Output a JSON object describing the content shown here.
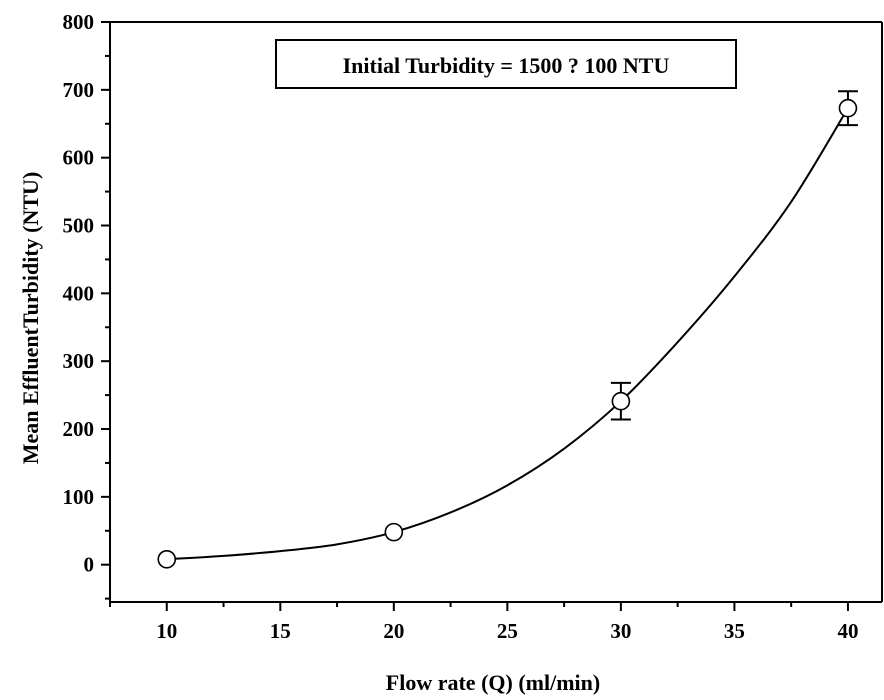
{
  "chart_data": {
    "type": "scatter",
    "title": "",
    "xlabel": "Flow rate (Q) (ml/min)",
    "ylabel": "Mean EffluentTurbidity (NTU)",
    "xlim": [
      7.5,
      41.5
    ],
    "ylim": [
      -55,
      800
    ],
    "x_ticks": [
      10,
      15,
      20,
      25,
      30,
      35,
      40
    ],
    "y_ticks": [
      0,
      100,
      200,
      300,
      400,
      500,
      600,
      700,
      800
    ],
    "grid": false,
    "annotation": "Initial Turbidity = 1500 ? 100 NTU",
    "series": [
      {
        "marker": "open-circle",
        "x": [
          10,
          20,
          30,
          40
        ],
        "y": [
          8,
          48,
          241,
          673
        ],
        "error": [
          2,
          3,
          27,
          25
        ]
      }
    ],
    "fit_curve": {
      "x": [
        10,
        12.5,
        15,
        17.5,
        20,
        22.5,
        25,
        27.5,
        30,
        32.5,
        35,
        37.5,
        40
      ],
      "y": [
        8,
        13,
        20,
        30,
        48,
        77,
        117,
        171,
        241,
        328,
        425,
        535,
        673
      ]
    },
    "colors": {
      "axis": "#000000",
      "marker_fill": "#ffffff",
      "line": "#000000"
    }
  }
}
